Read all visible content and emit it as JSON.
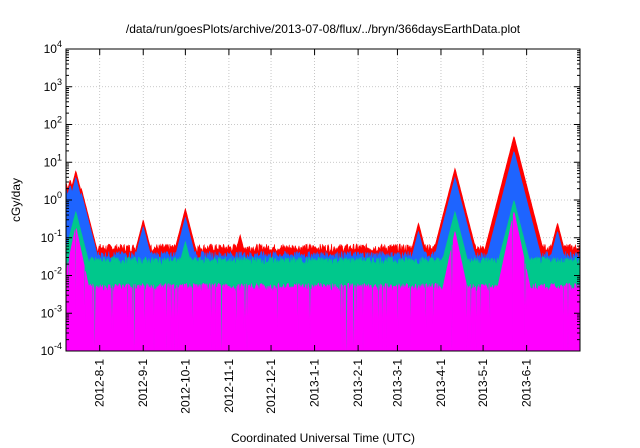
{
  "chart_data": {
    "type": "line",
    "title": "/data/run/goesPlots/archive/2013-07-08/flux/../bryn/366daysEarthData.plot",
    "xlabel": "Coordinated Universal Time (UTC)",
    "ylabel": "cGy/day",
    "yscale": "log",
    "ylim": [
      0.0001,
      10000
    ],
    "y_ticks": [
      {
        "value": 0.0001,
        "base": "10",
        "exp": "-4"
      },
      {
        "value": 0.001,
        "base": "10",
        "exp": "-3"
      },
      {
        "value": 0.01,
        "base": "10",
        "exp": "-2"
      },
      {
        "value": 0.1,
        "base": "10",
        "exp": "-1"
      },
      {
        "value": 1,
        "base": "10",
        "exp": "0"
      },
      {
        "value": 10,
        "base": "10",
        "exp": "1"
      },
      {
        "value": 100,
        "base": "10",
        "exp": "2"
      },
      {
        "value": 1000,
        "base": "10",
        "exp": "3"
      },
      {
        "value": 10000,
        "base": "10",
        "exp": "4"
      }
    ],
    "xlim": [
      "2012-07-08",
      "2013-07-09"
    ],
    "x_ticks": [
      "2012-8-1",
      "2012-9-1",
      "2012-10-1",
      "2012-11-1",
      "2012-12-1",
      "2013-1-1",
      "2013-2-1",
      "2013-3-1",
      "2013-4-1",
      "2013-5-1",
      "2013-6-1"
    ],
    "x_tick_dates": [
      "2012-08-01",
      "2012-09-01",
      "2012-10-01",
      "2012-11-01",
      "2012-12-01",
      "2013-01-01",
      "2013-02-01",
      "2013-03-01",
      "2013-04-01",
      "2013-05-01",
      "2013-06-01"
    ],
    "grid": true,
    "series": [
      {
        "color": "#ff0000",
        "baseline": 0.055,
        "peaks": [
          {
            "x": "2012-07-08",
            "y": 3
          },
          {
            "x": "2012-07-11",
            "y": 3.5
          },
          {
            "x": "2012-07-15",
            "y": 6
          },
          {
            "x": "2012-07-19",
            "y": 2
          },
          {
            "x": "2012-09-01",
            "y": 0.3
          },
          {
            "x": "2012-10-01",
            "y": 0.6
          },
          {
            "x": "2012-11-09",
            "y": 0.12
          },
          {
            "x": "2013-03-16",
            "y": 0.25
          },
          {
            "x": "2013-04-11",
            "y": 7
          },
          {
            "x": "2013-05-17",
            "y": 0.6
          },
          {
            "x": "2013-05-23",
            "y": 50
          },
          {
            "x": "2013-06-23",
            "y": 0.25
          }
        ]
      },
      {
        "color": "#1e64ff",
        "baseline": 0.035,
        "peaks": [
          {
            "x": "2012-07-08",
            "y": 2
          },
          {
            "x": "2012-07-11",
            "y": 2.5
          },
          {
            "x": "2012-07-15",
            "y": 4
          },
          {
            "x": "2012-07-19",
            "y": 1.5
          },
          {
            "x": "2012-09-01",
            "y": 0.2
          },
          {
            "x": "2012-10-01",
            "y": 0.35
          },
          {
            "x": "2013-03-16",
            "y": 0.15
          },
          {
            "x": "2013-04-11",
            "y": 4
          },
          {
            "x": "2013-05-17",
            "y": 0.4
          },
          {
            "x": "2013-05-23",
            "y": 20
          },
          {
            "x": "2013-06-23",
            "y": 0.15
          }
        ]
      },
      {
        "color": "#00c88c",
        "baseline": 0.025,
        "peaks": [
          {
            "x": "2012-07-15",
            "y": 0.5
          },
          {
            "x": "2012-10-01",
            "y": 0.08
          },
          {
            "x": "2013-04-11",
            "y": 0.5
          },
          {
            "x": "2013-05-23",
            "y": 1
          }
        ]
      },
      {
        "color": "#ff00ff",
        "baseline": 0.005,
        "peaks": [
          {
            "x": "2012-07-15",
            "y": 0.2
          },
          {
            "x": "2013-04-11",
            "y": 0.15
          },
          {
            "x": "2013-05-23",
            "y": 0.5
          }
        ]
      }
    ]
  }
}
